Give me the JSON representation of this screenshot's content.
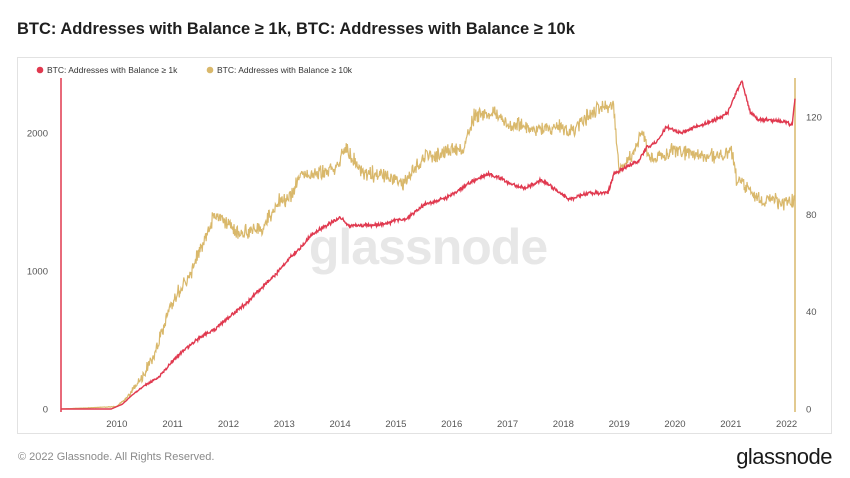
{
  "header": {
    "title": "BTC: Addresses with Balance ≥ 1k, BTC: Addresses with Balance ≥ 10k"
  },
  "footer": {
    "copyright": "© 2022 Glassnode. All Rights Reserved.",
    "brand": "glassnode"
  },
  "watermark": "glassnode",
  "colors": {
    "series_1k": "#e0394f",
    "series_10k": "#d9b86b",
    "grid": "#eeeeee"
  },
  "chart_data": {
    "type": "line",
    "title": "BTC: Addresses with Balance ≥ 1k, BTC: Addresses with Balance ≥ 10k",
    "grid": false,
    "legend": {
      "position": "top-left",
      "entries": [
        "BTC: Addresses with Balance ≥ 1k",
        "BTC: Addresses with Balance ≥ 10k"
      ]
    },
    "x_ticks": [
      "2010",
      "2011",
      "2012",
      "2013",
      "2014",
      "2015",
      "2016",
      "2017",
      "2018",
      "2019",
      "2020",
      "2021",
      "2022"
    ],
    "x_range": [
      2009.0,
      2022.15
    ],
    "y_left": {
      "ticks": [
        "0",
        "1000",
        "2000"
      ],
      "range": [
        0,
        2400
      ],
      "series": "BTC: Addresses with Balance ≥ 1k"
    },
    "y_right": {
      "ticks": [
        "0",
        "40",
        "80",
        "120"
      ],
      "range": [
        0,
        136
      ],
      "series": "BTC: Addresses with Balance ≥ 10k"
    },
    "series": [
      {
        "name": "BTC: Addresses with Balance ≥ 1k",
        "axis": "left",
        "x": [
          2009.0,
          2009.9,
          2010.1,
          2010.3,
          2010.5,
          2010.75,
          2011.0,
          2011.3,
          2011.5,
          2011.75,
          2012.0,
          2012.3,
          2012.6,
          2012.9,
          2013.1,
          2013.3,
          2013.5,
          2013.8,
          2014.0,
          2014.15,
          2014.4,
          2014.8,
          2015.0,
          2015.2,
          2015.5,
          2015.9,
          2016.1,
          2016.4,
          2016.65,
          2016.9,
          2017.0,
          2017.3,
          2017.6,
          2017.9,
          2018.1,
          2018.4,
          2018.7,
          2018.8,
          2018.9,
          2019.1,
          2019.35,
          2019.5,
          2019.7,
          2019.85,
          2020.1,
          2020.4,
          2020.75,
          2020.95,
          2021.1,
          2021.2,
          2021.35,
          2021.5,
          2021.8,
          2022.0,
          2022.1,
          2022.15
        ],
        "y": [
          0,
          0,
          35,
          110,
          170,
          230,
          350,
          460,
          520,
          580,
          660,
          760,
          880,
          1000,
          1100,
          1170,
          1270,
          1340,
          1390,
          1330,
          1330,
          1340,
          1370,
          1380,
          1480,
          1530,
          1580,
          1660,
          1700,
          1670,
          1640,
          1600,
          1660,
          1580,
          1520,
          1560,
          1570,
          1570,
          1700,
          1750,
          1800,
          1900,
          1950,
          2050,
          2000,
          2050,
          2100,
          2150,
          2300,
          2380,
          2150,
          2100,
          2090,
          2080,
          2060,
          2250
        ]
      },
      {
        "name": "BTC: Addresses with Balance ≥ 10k",
        "axis": "right",
        "x": [
          2009.0,
          2010.0,
          2010.2,
          2010.5,
          2010.75,
          2010.95,
          2011.1,
          2011.3,
          2011.5,
          2011.6,
          2011.75,
          2012.0,
          2012.2,
          2012.6,
          2012.9,
          2013.1,
          2013.3,
          2013.6,
          2013.9,
          2014.1,
          2014.4,
          2014.8,
          2015.1,
          2015.5,
          2015.9,
          2016.2,
          2016.4,
          2016.7,
          2017.0,
          2017.5,
          2017.9,
          2018.1,
          2018.5,
          2018.75,
          2018.9,
          2019.0,
          2019.2,
          2019.4,
          2019.6,
          2019.8,
          2020.0,
          2020.3,
          2020.6,
          2020.9,
          2021.0,
          2021.1,
          2021.3,
          2021.5,
          2021.8,
          2022.0,
          2022.15
        ],
        "y": [
          0,
          1,
          5,
          15,
          27,
          42,
          48,
          55,
          66,
          70,
          80,
          76,
          72,
          74,
          85,
          86,
          96,
          97,
          98,
          107,
          97,
          96,
          92,
          103,
          105,
          108,
          120,
          122,
          117,
          115,
          116,
          113,
          122,
          125,
          125,
          97,
          103,
          113,
          102,
          104,
          107,
          104,
          104,
          104,
          107,
          95,
          90,
          86,
          85,
          84,
          86
        ]
      }
    ]
  }
}
